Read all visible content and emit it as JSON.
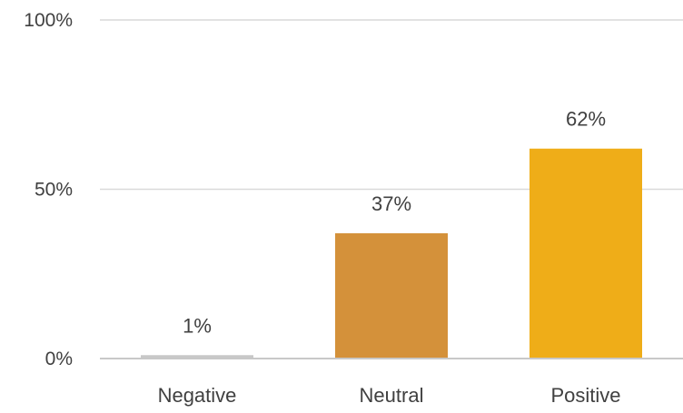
{
  "chart_data": {
    "type": "bar",
    "categories": [
      "Negative",
      "Neutral",
      "Positive"
    ],
    "values": [
      1,
      37,
      62
    ],
    "value_format": "{v}%",
    "colors": [
      "#c8c8c8",
      "#d4913a",
      "#efad18"
    ],
    "ylim": [
      0,
      100
    ],
    "yticks": [
      {
        "value": 0,
        "label": "0%"
      },
      {
        "value": 50,
        "label": "50%"
      },
      {
        "value": 100,
        "label": "100%"
      }
    ],
    "grid": true,
    "legend": "none"
  }
}
